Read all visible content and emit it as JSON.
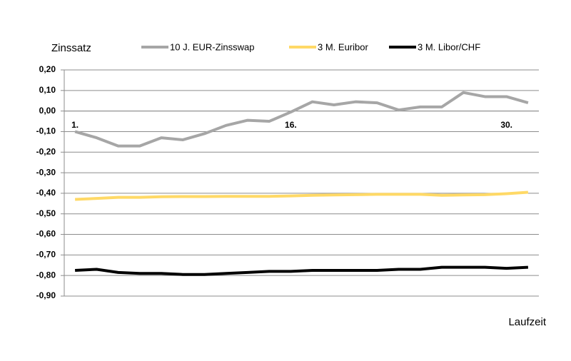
{
  "chart_data": {
    "type": "line",
    "y_label": "Zinssatz",
    "x_label": "Laufzeit",
    "categories": [
      "1.",
      null,
      null,
      null,
      null,
      null,
      null,
      null,
      null,
      null,
      "16.",
      null,
      null,
      null,
      null,
      null,
      null,
      null,
      null,
      null,
      "30.",
      null
    ],
    "series": [
      {
        "name": "10 J. EUR-Zinsswap",
        "color": "#a6a6a6",
        "values": [
          -0.1,
          -0.13,
          -0.17,
          -0.17,
          -0.13,
          -0.14,
          -0.11,
          -0.07,
          -0.045,
          -0.05,
          -0.005,
          0.045,
          0.03,
          0.045,
          0.04,
          0.005,
          0.02,
          0.02,
          0.09,
          0.07,
          0.07,
          0.04
        ]
      },
      {
        "name": "3 M. Euribor",
        "color": "#ffd966",
        "values": [
          -0.43,
          -0.425,
          -0.42,
          -0.42,
          -0.417,
          -0.416,
          -0.416,
          -0.415,
          -0.415,
          -0.415,
          -0.413,
          -0.41,
          -0.408,
          -0.407,
          -0.405,
          -0.405,
          -0.405,
          -0.41,
          -0.408,
          -0.407,
          -0.402,
          -0.395
        ]
      },
      {
        "name": "3 M. Libor/CHF",
        "color": "#000000",
        "values": [
          -0.775,
          -0.77,
          -0.785,
          -0.79,
          -0.79,
          -0.795,
          -0.795,
          -0.79,
          -0.785,
          -0.78,
          -0.78,
          -0.775,
          -0.775,
          -0.775,
          -0.775,
          -0.77,
          -0.77,
          -0.76,
          -0.76,
          -0.76,
          -0.765,
          -0.76
        ]
      }
    ],
    "ylim": [
      -0.9,
      0.2
    ],
    "yticks": [
      {
        "value": -0.9,
        "label": "-0,90"
      },
      {
        "value": -0.8,
        "label": "-0,80"
      },
      {
        "value": -0.7,
        "label": "-0,70"
      },
      {
        "value": -0.6,
        "label": "-0,60"
      },
      {
        "value": -0.5,
        "label": "-0,50"
      },
      {
        "value": -0.4,
        "label": "-0,40"
      },
      {
        "value": -0.3,
        "label": "-0,30"
      },
      {
        "value": -0.2,
        "label": "-0,20"
      },
      {
        "value": -0.1,
        "label": "-0,10"
      },
      {
        "value": 0,
        "label": "0,00"
      },
      {
        "value": 0.1,
        "label": "0,10"
      },
      {
        "value": 0.2,
        "label": "0,20"
      }
    ],
    "grid": true
  }
}
